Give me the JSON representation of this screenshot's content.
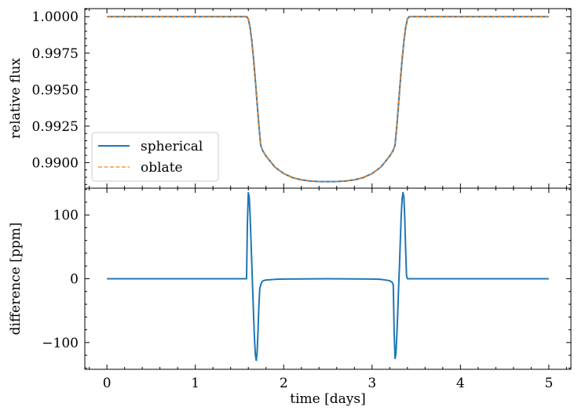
{
  "chart_data": [
    {
      "type": "line",
      "panel": "top",
      "xlabel": "",
      "ylabel": "relative flux",
      "xlim": [
        -0.25,
        5.25
      ],
      "ylim": [
        0.98825,
        1.00055
      ],
      "yticks": [
        0.99,
        0.9925,
        0.995,
        0.9975,
        1.0
      ],
      "ytick_labels": [
        "0.9900",
        "0.9925",
        "0.9950",
        "0.9975",
        "1.0000"
      ],
      "legend_position": "lower-left",
      "series": [
        {
          "name": "spherical",
          "color": "#1f77b4",
          "style": "solid",
          "x": [
            0,
            1.0,
            1.58,
            1.6,
            1.62,
            1.64,
            1.66,
            1.68,
            1.7,
            1.72,
            1.74,
            1.76,
            1.8,
            1.9,
            2.0,
            2.1,
            2.2,
            2.3,
            2.4,
            2.5,
            2.6,
            2.7,
            2.8,
            2.9,
            3.0,
            3.1,
            3.2,
            3.24,
            3.26,
            3.28,
            3.3,
            3.32,
            3.34,
            3.36,
            3.38,
            3.4,
            3.42,
            4.0,
            5.0
          ],
          "y": [
            1.0,
            1.0,
            1.0,
            0.99985,
            0.99925,
            0.9983,
            0.99705,
            0.9956,
            0.99405,
            0.9925,
            0.9912,
            0.99085,
            0.99045,
            0.9897,
            0.98925,
            0.98898,
            0.98882,
            0.98874,
            0.98871,
            0.9887,
            0.98871,
            0.98874,
            0.98882,
            0.98898,
            0.98925,
            0.9897,
            0.99045,
            0.99085,
            0.9912,
            0.9925,
            0.99405,
            0.9956,
            0.99705,
            0.9983,
            0.99925,
            0.99985,
            1.0,
            1.0,
            1.0
          ]
        },
        {
          "name": "oblate",
          "color": "#ff7f0e",
          "style": "dashed",
          "x": [
            0,
            1.0,
            1.58,
            1.6,
            1.62,
            1.64,
            1.66,
            1.68,
            1.7,
            1.72,
            1.74,
            1.76,
            1.8,
            1.9,
            2.0,
            2.1,
            2.2,
            2.3,
            2.4,
            2.5,
            2.6,
            2.7,
            2.8,
            2.9,
            3.0,
            3.1,
            3.2,
            3.24,
            3.26,
            3.28,
            3.3,
            3.32,
            3.34,
            3.36,
            3.38,
            3.4,
            3.42,
            4.0,
            5.0
          ],
          "y": [
            1.0,
            1.0,
            1.0,
            0.99985,
            0.99925,
            0.9983,
            0.99705,
            0.9956,
            0.99405,
            0.9925,
            0.9912,
            0.99085,
            0.99045,
            0.9897,
            0.98925,
            0.98898,
            0.98882,
            0.98874,
            0.98871,
            0.9887,
            0.98871,
            0.98874,
            0.98882,
            0.98898,
            0.98925,
            0.9897,
            0.99045,
            0.99085,
            0.9912,
            0.9925,
            0.99405,
            0.9956,
            0.99705,
            0.9983,
            0.99925,
            0.99985,
            1.0,
            1.0,
            1.0
          ]
        }
      ]
    },
    {
      "type": "line",
      "panel": "bottom",
      "xlabel": "time [days]",
      "ylabel": "difference [ppm]",
      "xlim": [
        -0.25,
        5.25
      ],
      "ylim": [
        -142,
        142
      ],
      "xticks": [
        0,
        1,
        2,
        3,
        4,
        5
      ],
      "xtick_labels": [
        "0",
        "1",
        "2",
        "3",
        "4",
        "5"
      ],
      "yticks": [
        -100,
        0,
        100
      ],
      "ytick_labels": [
        "−100",
        "0",
        "100"
      ],
      "series": [
        {
          "color": "#1f77b4",
          "style": "solid",
          "x": [
            0,
            1.0,
            1.57,
            1.58,
            1.59,
            1.6,
            1.61,
            1.62,
            1.63,
            1.64,
            1.65,
            1.66,
            1.67,
            1.68,
            1.69,
            1.7,
            1.71,
            1.72,
            1.73,
            1.74,
            1.75,
            1.76,
            1.77,
            1.8,
            1.9,
            2.0,
            2.5,
            3.0,
            3.1,
            3.2,
            3.23,
            3.24,
            3.25,
            3.26,
            3.27,
            3.28,
            3.29,
            3.3,
            3.31,
            3.32,
            3.33,
            3.34,
            3.35,
            3.36,
            3.37,
            3.38,
            3.39,
            3.4,
            3.41,
            3.42,
            3.43,
            4.0,
            5.0
          ],
          "y": [
            0,
            0,
            0,
            0,
            90,
            135,
            128,
            100,
            60,
            20,
            -20,
            -60,
            -95,
            -120,
            -128,
            -115,
            -80,
            -40,
            -15,
            -10,
            -6,
            -4,
            -3,
            -2,
            -1,
            -0.5,
            0,
            -0.5,
            -1,
            -3,
            -6,
            -10,
            -85,
            -125,
            -118,
            -90,
            -55,
            -15,
            20,
            60,
            100,
            125,
            135,
            128,
            95,
            45,
            5,
            0,
            0,
            0,
            0,
            0,
            0
          ]
        }
      ]
    }
  ]
}
